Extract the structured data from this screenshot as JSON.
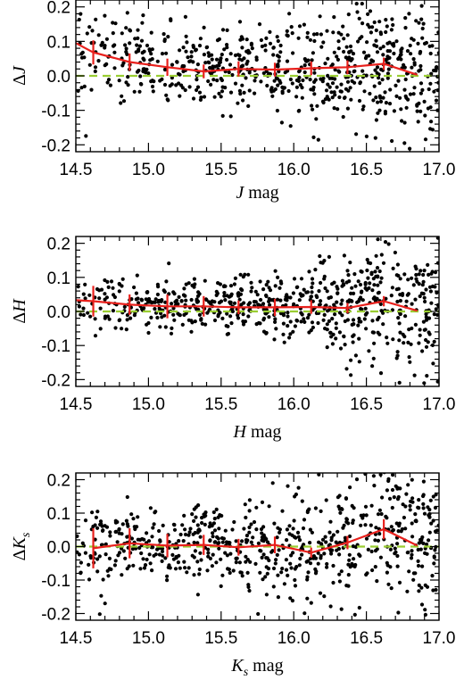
{
  "chart_data": [
    {
      "type": "scatter",
      "title": "",
      "xlabel": {
        "sym": "J",
        "sub": "",
        "suffix": " mag"
      },
      "ylabel": {
        "prefix": "Δ",
        "sym": "J",
        "sub": ""
      },
      "xlim": [
        14.5,
        17.0
      ],
      "ylim": [
        -0.22,
        0.22
      ],
      "xticks": [
        "14.5",
        "15.0",
        "15.5",
        "16.0",
        "16.5",
        "17.0"
      ],
      "yticks": [
        "-0.2",
        "-0.1",
        "0.0",
        "0.1",
        "0.2"
      ],
      "reference_line": {
        "y": 0.0,
        "color": "#9acd32",
        "style": "dashed"
      },
      "binned_mean": {
        "color": "#e8201c",
        "x": [
          14.5,
          14.62,
          14.87,
          15.13,
          15.38,
          15.62,
          15.87,
          16.12,
          16.37,
          16.62,
          16.85
        ],
        "y": [
          0.095,
          0.068,
          0.04,
          0.025,
          0.013,
          0.02,
          0.018,
          0.022,
          0.025,
          0.035,
          0.003
        ],
        "err": [
          null,
          0.035,
          0.025,
          0.025,
          0.02,
          0.022,
          0.02,
          0.02,
          0.02,
          0.018,
          null
        ]
      },
      "scatter_spread": [
        [
          14.5,
          0.075
        ],
        [
          15.0,
          0.06
        ],
        [
          15.5,
          0.055
        ],
        [
          16.0,
          0.065
        ],
        [
          16.5,
          0.085
        ],
        [
          17.0,
          0.11
        ]
      ]
    },
    {
      "type": "scatter",
      "title": "",
      "xlabel": {
        "sym": "H",
        "sub": "",
        "suffix": " mag"
      },
      "ylabel": {
        "prefix": "Δ",
        "sym": "H",
        "sub": ""
      },
      "xlim": [
        14.5,
        17.0
      ],
      "ylim": [
        -0.22,
        0.22
      ],
      "xticks": [
        "14.5",
        "15.0",
        "15.5",
        "16.0",
        "16.5",
        "17.0"
      ],
      "yticks": [
        "-0.2",
        "-0.1",
        "0.0",
        "0.1",
        "0.2"
      ],
      "reference_line": {
        "y": 0.0,
        "color": "#9acd32",
        "style": "dashed"
      },
      "binned_mean": {
        "color": "#e8201c",
        "x": [
          14.5,
          14.62,
          14.87,
          15.13,
          15.38,
          15.62,
          15.87,
          16.12,
          16.37,
          16.62,
          16.85
        ],
        "y": [
          0.033,
          0.03,
          0.02,
          0.015,
          0.015,
          0.012,
          0.012,
          0.013,
          0.01,
          0.03,
          0.002
        ],
        "err": [
          null,
          0.045,
          0.03,
          0.035,
          0.03,
          0.02,
          0.025,
          0.02,
          0.015,
          0.015,
          null
        ]
      },
      "scatter_spread": [
        [
          14.5,
          0.045
        ],
        [
          15.0,
          0.04
        ],
        [
          15.5,
          0.04
        ],
        [
          16.0,
          0.05
        ],
        [
          16.5,
          0.075
        ],
        [
          17.0,
          0.1
        ]
      ]
    },
    {
      "type": "scatter",
      "title": "",
      "xlabel": {
        "sym": "K",
        "sub": "s",
        "suffix": " mag"
      },
      "ylabel": {
        "prefix": "Δ",
        "sym": "K",
        "sub": "s"
      },
      "xlim": [
        14.5,
        17.0
      ],
      "ylim": [
        -0.22,
        0.22
      ],
      "xticks": [
        "14.5",
        "15.0",
        "15.5",
        "16.0",
        "16.5",
        "17.0"
      ],
      "yticks": [
        "-0.2",
        "-0.1",
        "0.0",
        "0.1",
        "0.2"
      ],
      "reference_line": {
        "y": 0.0,
        "color": "#9acd32",
        "style": "dashed"
      },
      "binned_mean": {
        "color": "#e8201c",
        "x": [
          14.62,
          14.87,
          15.13,
          15.38,
          15.62,
          15.87,
          16.12,
          16.37,
          16.62,
          16.85
        ],
        "y": [
          -0.005,
          0.01,
          0.003,
          0.005,
          -0.002,
          0.005,
          -0.018,
          0.012,
          0.052,
          0.003
        ],
        "err": [
          0.06,
          0.045,
          0.035,
          0.03,
          0.025,
          0.025,
          0.015,
          0.02,
          0.03,
          null
        ]
      },
      "scatter_spread": [
        [
          14.5,
          0.06
        ],
        [
          15.0,
          0.06
        ],
        [
          15.5,
          0.06
        ],
        [
          16.0,
          0.075
        ],
        [
          16.5,
          0.1
        ],
        [
          17.0,
          0.12
        ]
      ]
    }
  ]
}
